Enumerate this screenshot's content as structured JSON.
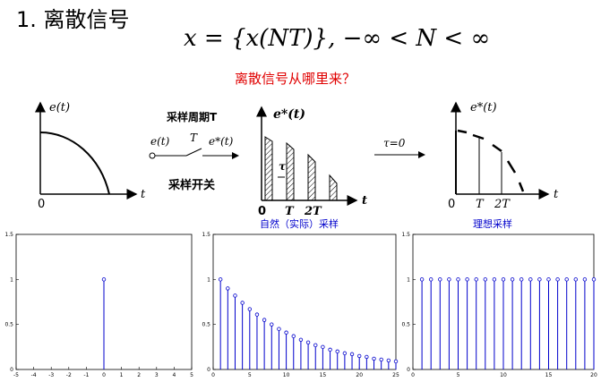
{
  "title": "1. 离散信号",
  "formula": "x = {x(NT)}, −∞ < N < ∞",
  "question": "离散信号从哪里来？",
  "colors": {
    "accent_red": "#e00000",
    "blue_label": "#0000cc",
    "stem_blue": "#0000cc"
  },
  "diagram": {
    "sig_label": "e(t)",
    "axis_t": "t",
    "origin": "0",
    "period_label": "采样周期T",
    "switch_T": "T",
    "switch_in": "e(t)",
    "switch_out": "e*(t)",
    "switch_caption": "采样开关",
    "real_label": "e*(t)",
    "real_sub": "τ",
    "tau": "τ",
    "T": "T",
    "twoT": "2T",
    "tau_eq": "τ=0",
    "ideal_label": "e*(t)",
    "caption_real": "自然（实际）采样",
    "caption_ideal": "理想采样"
  },
  "chart_data": [
    {
      "type": "stem",
      "title": "",
      "xlim": [
        -5,
        5
      ],
      "ylim": [
        0,
        1.5
      ],
      "xticks": [
        "-5",
        "-4",
        "-3",
        "-2",
        "-1",
        "0",
        "1",
        "2",
        "3",
        "4",
        "5"
      ],
      "yticks": [
        "0",
        "0.5",
        "1",
        "1.5"
      ],
      "x": [
        0
      ],
      "values": [
        1
      ]
    },
    {
      "type": "stem",
      "title": "",
      "xlim": [
        0,
        25
      ],
      "ylim": [
        0,
        1.5
      ],
      "xticks": [
        "0",
        "5",
        "10",
        "15",
        "20",
        "25"
      ],
      "yticks": [
        "0",
        "0.5",
        "1",
        "1.5"
      ],
      "x": [
        1,
        2,
        3,
        4,
        5,
        6,
        7,
        8,
        9,
        10,
        11,
        12,
        13,
        14,
        15,
        16,
        17,
        18,
        19,
        20,
        21,
        22,
        23,
        24,
        25
      ],
      "values": [
        1.0,
        0.9,
        0.82,
        0.74,
        0.67,
        0.61,
        0.55,
        0.5,
        0.45,
        0.41,
        0.37,
        0.33,
        0.3,
        0.27,
        0.25,
        0.22,
        0.2,
        0.18,
        0.17,
        0.15,
        0.14,
        0.12,
        0.11,
        0.1,
        0.09
      ]
    },
    {
      "type": "stem",
      "title": "",
      "xlim": [
        0,
        20
      ],
      "ylim": [
        0,
        1.5
      ],
      "xticks": [
        "0",
        "5",
        "10",
        "15",
        "20"
      ],
      "yticks": [
        "0",
        "0.5",
        "1",
        "1.5"
      ],
      "x": [
        1,
        2,
        3,
        4,
        5,
        6,
        7,
        8,
        9,
        10,
        11,
        12,
        13,
        14,
        15,
        16,
        17,
        18,
        19,
        20
      ],
      "values": [
        1,
        1,
        1,
        1,
        1,
        1,
        1,
        1,
        1,
        1,
        1,
        1,
        1,
        1,
        1,
        1,
        1,
        1,
        1,
        1
      ]
    }
  ]
}
